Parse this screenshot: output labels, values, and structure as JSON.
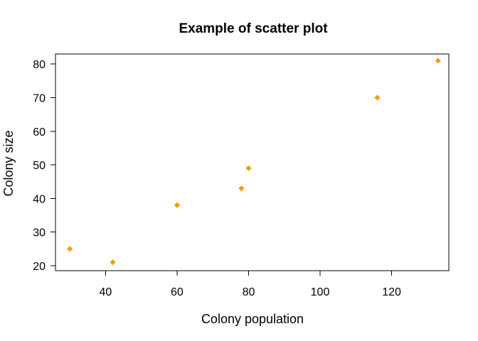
{
  "chart_data": {
    "type": "scatter",
    "title": "Example of scatter plot",
    "xlabel": "Colony population",
    "ylabel": "Colony size",
    "xlim": [
      26,
      136
    ],
    "ylim": [
      18.5,
      83
    ],
    "xticks": [
      40,
      60,
      80,
      100,
      120
    ],
    "yticks": [
      20,
      30,
      40,
      50,
      60,
      70,
      80
    ],
    "grid": false,
    "marker": "diamond",
    "point_color": "#f5a000",
    "points": [
      {
        "x": 30,
        "y": 25
      },
      {
        "x": 42,
        "y": 21
      },
      {
        "x": 60,
        "y": 38
      },
      {
        "x": 78,
        "y": 43
      },
      {
        "x": 80,
        "y": 49
      },
      {
        "x": 116,
        "y": 70
      },
      {
        "x": 133,
        "y": 81
      }
    ]
  }
}
